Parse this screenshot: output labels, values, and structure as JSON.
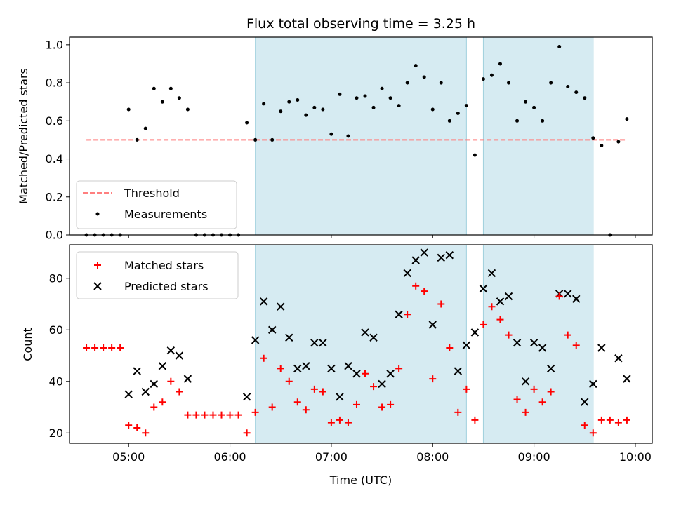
{
  "chart_data": [
    {
      "type": "scatter",
      "title": "Flux total observing time = 3.25 h",
      "xlabel": "",
      "ylabel": "Matched/Predicted stars",
      "ylim": [
        0,
        1.04
      ],
      "yticks": [
        "0.0",
        "0.2",
        "0.4",
        "0.6",
        "0.8",
        "1.0"
      ],
      "ytick_values": [
        0,
        0.2,
        0.4,
        0.6,
        0.8,
        1.0
      ],
      "threshold": {
        "name": "Threshold",
        "value": 0.5,
        "x_start": "04:35",
        "x_end": "09:55",
        "color": "#ff7f7f",
        "style": "dashed"
      },
      "legend_position": "lower-left",
      "highlight_regions": [
        {
          "start": "06:15",
          "end": "08:20"
        },
        {
          "start": "08:30",
          "end": "09:35"
        }
      ],
      "series": [
        {
          "name": "Measurements",
          "marker": "dot",
          "color": "#000000",
          "points": [
            [
              "04:35",
              0.0
            ],
            [
              "04:40",
              0.0
            ],
            [
              "04:45",
              0.0
            ],
            [
              "04:50",
              0.0
            ],
            [
              "04:55",
              0.0
            ],
            [
              "05:00",
              0.66
            ],
            [
              "05:05",
              0.5
            ],
            [
              "05:10",
              0.56
            ],
            [
              "05:15",
              0.77
            ],
            [
              "05:20",
              0.7
            ],
            [
              "05:25",
              0.77
            ],
            [
              "05:30",
              0.72
            ],
            [
              "05:35",
              0.66
            ],
            [
              "05:40",
              0.0
            ],
            [
              "05:45",
              0.0
            ],
            [
              "05:50",
              0.0
            ],
            [
              "05:55",
              0.0
            ],
            [
              "06:00",
              0.0
            ],
            [
              "06:05",
              0.0
            ],
            [
              "06:10",
              0.59
            ],
            [
              "06:15",
              0.5
            ],
            [
              "06:20",
              0.69
            ],
            [
              "06:25",
              0.5
            ],
            [
              "06:30",
              0.65
            ],
            [
              "06:35",
              0.7
            ],
            [
              "06:40",
              0.71
            ],
            [
              "06:45",
              0.63
            ],
            [
              "06:50",
              0.67
            ],
            [
              "06:55",
              0.66
            ],
            [
              "07:00",
              0.53
            ],
            [
              "07:05",
              0.74
            ],
            [
              "07:10",
              0.52
            ],
            [
              "07:15",
              0.72
            ],
            [
              "07:20",
              0.73
            ],
            [
              "07:25",
              0.67
            ],
            [
              "07:30",
              0.77
            ],
            [
              "07:35",
              0.72
            ],
            [
              "07:40",
              0.68
            ],
            [
              "07:45",
              0.8
            ],
            [
              "07:50",
              0.89
            ],
            [
              "07:55",
              0.83
            ],
            [
              "08:00",
              0.66
            ],
            [
              "08:05",
              0.8
            ],
            [
              "08:10",
              0.6
            ],
            [
              "08:15",
              0.64
            ],
            [
              "08:20",
              0.68
            ],
            [
              "08:25",
              0.42
            ],
            [
              "08:30",
              0.82
            ],
            [
              "08:35",
              0.84
            ],
            [
              "08:40",
              0.9
            ],
            [
              "08:45",
              0.8
            ],
            [
              "08:50",
              0.6
            ],
            [
              "08:55",
              0.7
            ],
            [
              "09:00",
              0.67
            ],
            [
              "09:05",
              0.6
            ],
            [
              "09:10",
              0.8
            ],
            [
              "09:15",
              0.99
            ],
            [
              "09:20",
              0.78
            ],
            [
              "09:25",
              0.75
            ],
            [
              "09:30",
              0.72
            ],
            [
              "09:35",
              0.51
            ],
            [
              "09:40",
              0.47
            ],
            [
              "09:45",
              0.0
            ],
            [
              "09:50",
              0.49
            ],
            [
              "09:55",
              0.61
            ]
          ]
        }
      ]
    },
    {
      "type": "scatter",
      "title": "",
      "xlabel": "Time (UTC)",
      "ylabel": "Count",
      "ylim": [
        16,
        93
      ],
      "yticks": [
        "20",
        "40",
        "60",
        "80"
      ],
      "ytick_values": [
        20,
        40,
        60,
        80
      ],
      "x_range": [
        "04:25",
        "10:10"
      ],
      "xticks": [
        "05:00",
        "06:00",
        "07:00",
        "08:00",
        "09:00",
        "10:00"
      ],
      "legend_position": "upper-left",
      "highlight_regions": [
        {
          "start": "06:15",
          "end": "08:20"
        },
        {
          "start": "08:30",
          "end": "09:35"
        }
      ],
      "series": [
        {
          "name": "Matched stars",
          "marker": "plus",
          "color": "#ff0000",
          "points": [
            [
              "04:35",
              53
            ],
            [
              "04:40",
              53
            ],
            [
              "04:45",
              53
            ],
            [
              "04:50",
              53
            ],
            [
              "04:55",
              53
            ],
            [
              "05:00",
              23
            ],
            [
              "05:05",
              22
            ],
            [
              "05:10",
              20
            ],
            [
              "05:15",
              30
            ],
            [
              "05:20",
              32
            ],
            [
              "05:25",
              40
            ],
            [
              "05:30",
              36
            ],
            [
              "05:35",
              27
            ],
            [
              "05:40",
              27
            ],
            [
              "05:45",
              27
            ],
            [
              "05:50",
              27
            ],
            [
              "05:55",
              27
            ],
            [
              "06:00",
              27
            ],
            [
              "06:05",
              27
            ],
            [
              "06:10",
              20
            ],
            [
              "06:15",
              28
            ],
            [
              "06:20",
              49
            ],
            [
              "06:25",
              30
            ],
            [
              "06:30",
              45
            ],
            [
              "06:35",
              40
            ],
            [
              "06:40",
              32
            ],
            [
              "06:45",
              29
            ],
            [
              "06:50",
              37
            ],
            [
              "06:55",
              36
            ],
            [
              "07:00",
              24
            ],
            [
              "07:05",
              25
            ],
            [
              "07:10",
              24
            ],
            [
              "07:15",
              31
            ],
            [
              "07:20",
              43
            ],
            [
              "07:25",
              38
            ],
            [
              "07:30",
              30
            ],
            [
              "07:35",
              31
            ],
            [
              "07:40",
              45
            ],
            [
              "07:45",
              66
            ],
            [
              "07:50",
              77
            ],
            [
              "07:55",
              75
            ],
            [
              "08:00",
              41
            ],
            [
              "08:05",
              70
            ],
            [
              "08:10",
              53
            ],
            [
              "08:15",
              28
            ],
            [
              "08:20",
              37
            ],
            [
              "08:25",
              25
            ],
            [
              "08:30",
              62
            ],
            [
              "08:35",
              69
            ],
            [
              "08:40",
              64
            ],
            [
              "08:45",
              58
            ],
            [
              "08:50",
              33
            ],
            [
              "08:55",
              28
            ],
            [
              "09:00",
              37
            ],
            [
              "09:05",
              32
            ],
            [
              "09:10",
              36
            ],
            [
              "09:15",
              73
            ],
            [
              "09:20",
              58
            ],
            [
              "09:25",
              54
            ],
            [
              "09:30",
              23
            ],
            [
              "09:35",
              20
            ],
            [
              "09:40",
              25
            ],
            [
              "09:45",
              25
            ],
            [
              "09:50",
              24
            ],
            [
              "09:55",
              25
            ]
          ]
        },
        {
          "name": "Predicted stars",
          "marker": "x",
          "color": "#000000",
          "points": [
            [
              "05:00",
              35
            ],
            [
              "05:05",
              44
            ],
            [
              "05:10",
              36
            ],
            [
              "05:15",
              39
            ],
            [
              "05:20",
              46
            ],
            [
              "05:25",
              52
            ],
            [
              "05:30",
              50
            ],
            [
              "05:35",
              41
            ],
            [
              "06:10",
              34
            ],
            [
              "06:15",
              56
            ],
            [
              "06:20",
              71
            ],
            [
              "06:25",
              60
            ],
            [
              "06:30",
              69
            ],
            [
              "06:35",
              57
            ],
            [
              "06:40",
              45
            ],
            [
              "06:45",
              46
            ],
            [
              "06:50",
              55
            ],
            [
              "06:55",
              55
            ],
            [
              "07:00",
              45
            ],
            [
              "07:05",
              34
            ],
            [
              "07:10",
              46
            ],
            [
              "07:15",
              43
            ],
            [
              "07:20",
              59
            ],
            [
              "07:25",
              57
            ],
            [
              "07:30",
              39
            ],
            [
              "07:35",
              43
            ],
            [
              "07:40",
              66
            ],
            [
              "07:45",
              82
            ],
            [
              "07:50",
              87
            ],
            [
              "07:55",
              90
            ],
            [
              "08:00",
              62
            ],
            [
              "08:05",
              88
            ],
            [
              "08:10",
              89
            ],
            [
              "08:15",
              44
            ],
            [
              "08:20",
              54
            ],
            [
              "08:25",
              59
            ],
            [
              "08:30",
              76
            ],
            [
              "08:35",
              82
            ],
            [
              "08:40",
              71
            ],
            [
              "08:45",
              73
            ],
            [
              "08:50",
              55
            ],
            [
              "08:55",
              40
            ],
            [
              "09:00",
              55
            ],
            [
              "09:05",
              53
            ],
            [
              "09:10",
              45
            ],
            [
              "09:15",
              74
            ],
            [
              "09:20",
              74
            ],
            [
              "09:25",
              72
            ],
            [
              "09:30",
              32
            ],
            [
              "09:35",
              39
            ],
            [
              "09:40",
              53
            ],
            [
              "09:50",
              49
            ],
            [
              "09:55",
              41
            ]
          ]
        }
      ]
    }
  ]
}
